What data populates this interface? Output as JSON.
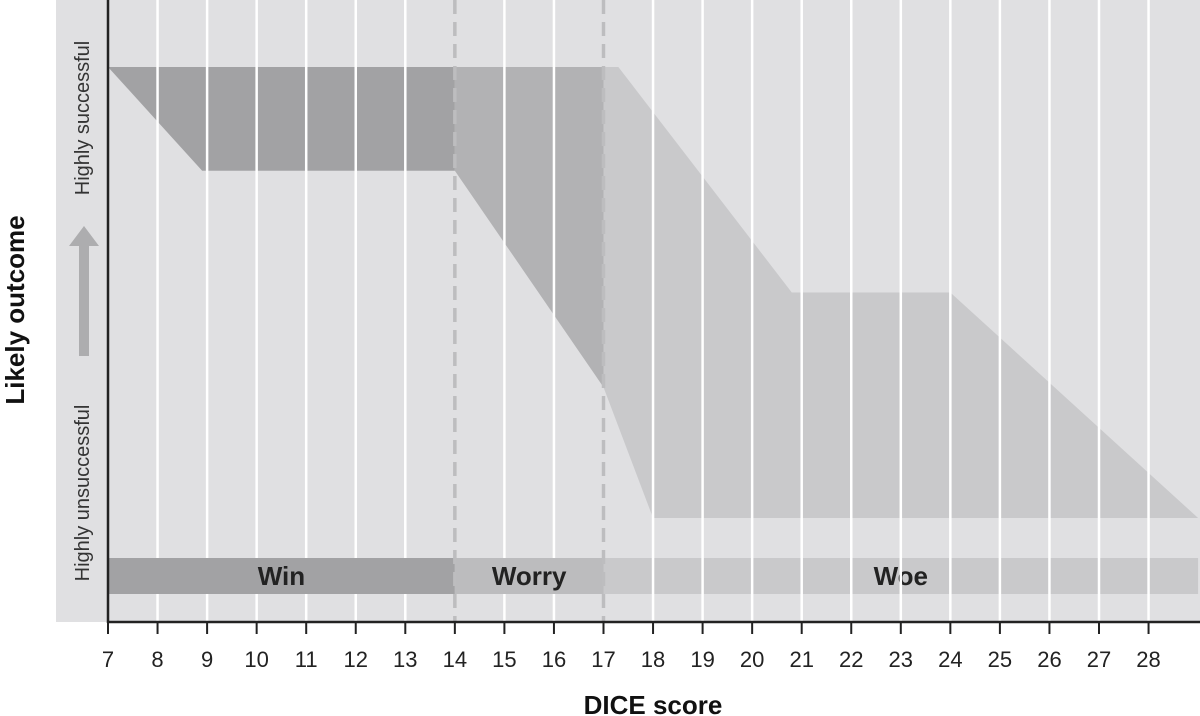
{
  "chart_data": {
    "type": "area",
    "title": "",
    "xlabel": "DICE score",
    "ylabel": "Likely outcome",
    "y_low_label": "Highly unsuccessful",
    "y_high_label": "Highly successful",
    "x_ticks": [
      7,
      8,
      9,
      10,
      11,
      12,
      13,
      14,
      15,
      16,
      17,
      18,
      19,
      20,
      21,
      22,
      23,
      24,
      25,
      26,
      27,
      28
    ],
    "xlim": [
      7,
      29
    ],
    "ylim": [
      0,
      1
    ],
    "zones": [
      {
        "name": "Win",
        "from": 7,
        "to": 14,
        "color": "#a2a2a4"
      },
      {
        "name": "Worry",
        "from": 14,
        "to": 17,
        "color": "#bcbcbe"
      },
      {
        "name": "Woe",
        "from": 17,
        "to": 29,
        "color": "#c9c9cb"
      }
    ],
    "bands": [
      {
        "zone": "Win",
        "color": "#a2a2a4",
        "upper": [
          [
            7,
            1.0
          ],
          [
            14,
            1.0
          ]
        ],
        "lower": [
          [
            7,
            1.0
          ],
          [
            8.9,
            0.77
          ],
          [
            14,
            0.77
          ]
        ]
      },
      {
        "zone": "Worry",
        "color": "#b2b2b4",
        "upper": [
          [
            14,
            1.0
          ],
          [
            17,
            1.0
          ]
        ],
        "lower": [
          [
            14,
            0.77
          ],
          [
            17,
            0.29
          ]
        ]
      },
      {
        "zone": "Woe",
        "color": "#c9c9cb",
        "upper": [
          [
            17,
            1.0
          ],
          [
            17.3,
            1.0
          ],
          [
            20.8,
            0.5
          ],
          [
            24,
            0.5
          ],
          [
            29,
            0.0
          ]
        ],
        "lower": [
          [
            17,
            0.29
          ],
          [
            18,
            0.0
          ],
          [
            29,
            0.0
          ]
        ]
      }
    ],
    "dividers": [
      14,
      17
    ],
    "grid": true,
    "colors": {
      "plot_bg": "#e0e0e2",
      "gridline": "#ffffff",
      "divider": "#bdbdbf",
      "axis": "#222222",
      "arrow": "#adadaf",
      "text": "#222222"
    }
  }
}
